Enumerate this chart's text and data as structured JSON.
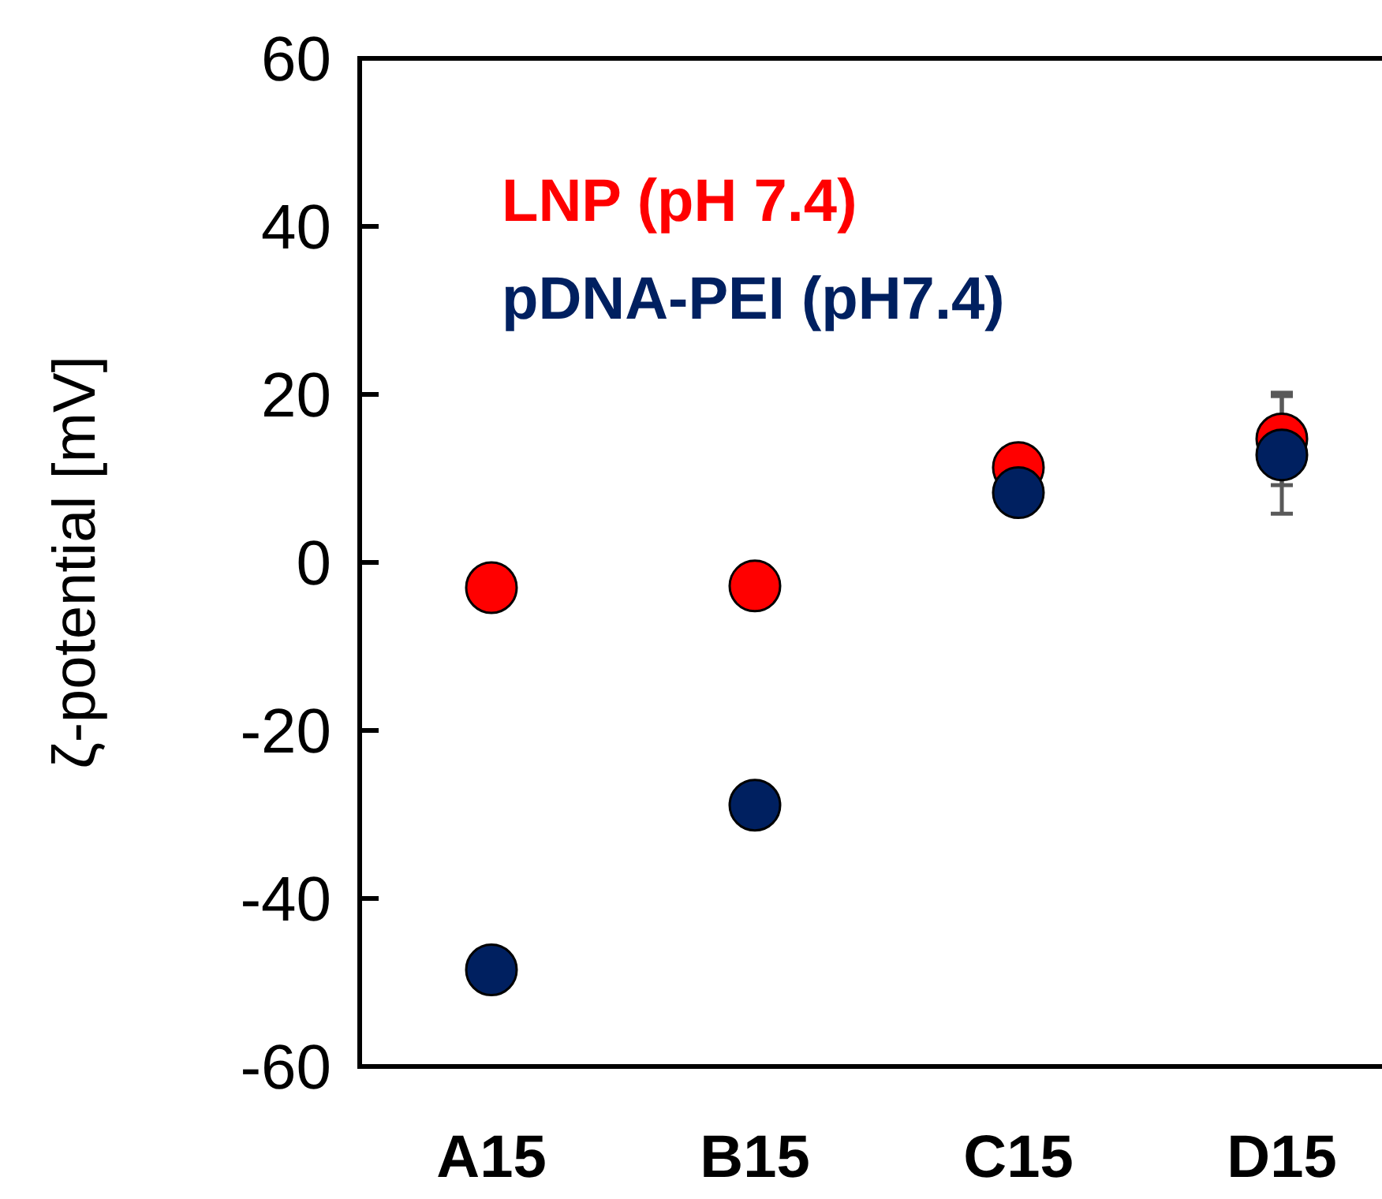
{
  "chart_data": {
    "type": "scatter",
    "ylabel": "ζ-potential [mV]",
    "categories": [
      "A15",
      "B15",
      "C15",
      "D15"
    ],
    "series": [
      {
        "name": "LNP (pH 7.4)",
        "color": "#ff0000",
        "values": [
          -3,
          -2.8,
          11.3,
          14.7
        ],
        "errors": [
          null,
          null,
          null,
          5.5
        ]
      },
      {
        "name": "pDNA-PEI (pH7.4)",
        "color": "#002060",
        "values": [
          -48.5,
          -28.9,
          8.3,
          12.8
        ],
        "errors": [
          null,
          null,
          null,
          7
        ]
      }
    ],
    "ylim": [
      -60,
      60
    ],
    "yticks": [
      -60,
      -40,
      -20,
      0,
      20,
      40,
      60
    ],
    "marker": "circle",
    "legend": "top left",
    "grid": false
  }
}
